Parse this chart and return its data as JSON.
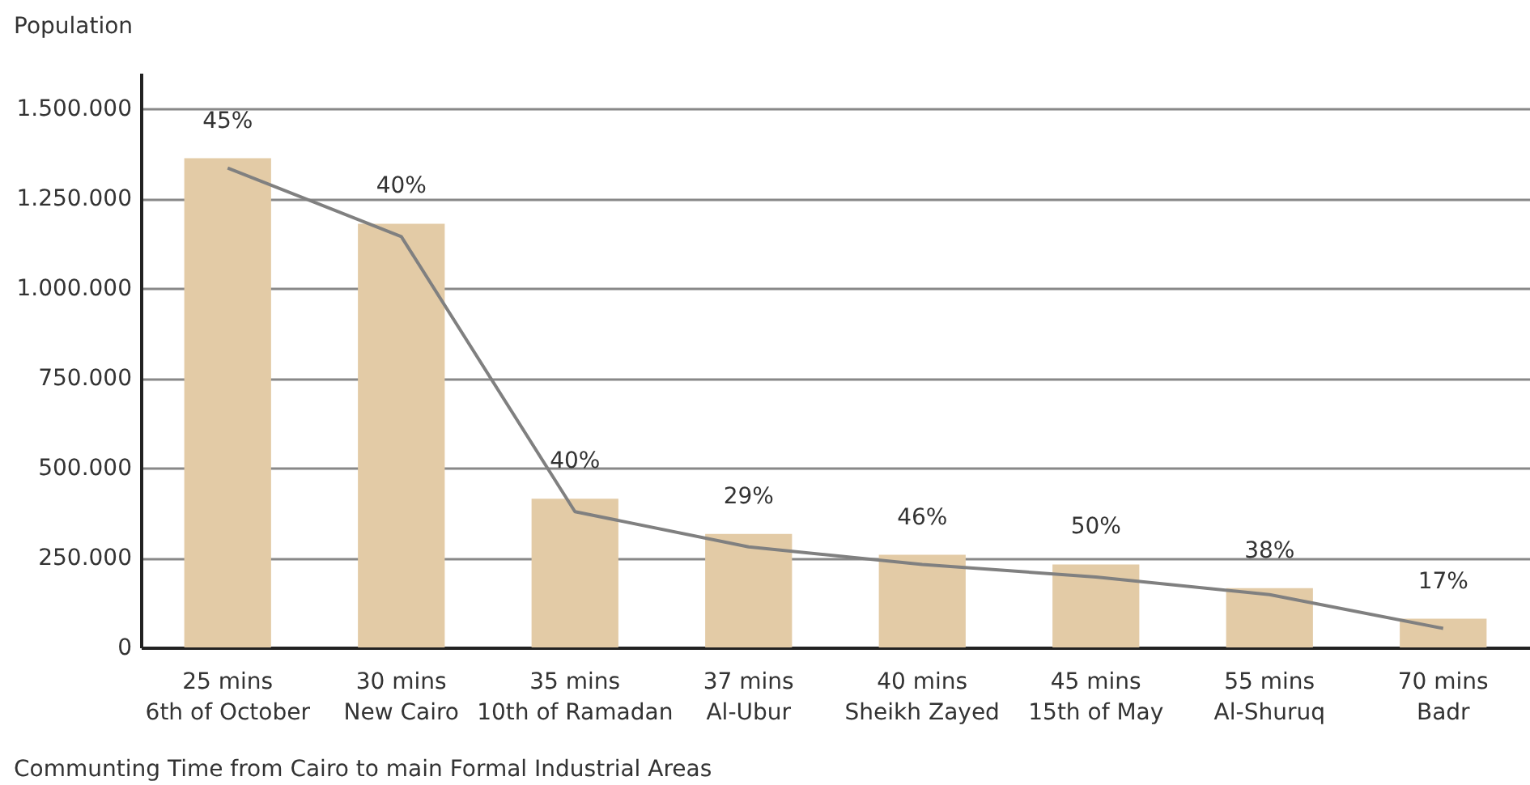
{
  "chart_data": {
    "type": "bar",
    "ylabel": "Population",
    "xlabel": "Communting Time from Cairo to main Formal Industrial Areas",
    "categories": [
      "25 mins\n6th of October",
      "30 mins\nNew Cairo",
      "35 mins\n10th of Ramadan",
      "37 mins\nAl-Ubur",
      "40 mins\nSheikh Zayed",
      "45 mins\n15th of May",
      "55 mins\nAl-Shuruq",
      "70 mins\nBadr"
    ],
    "series": [
      {
        "color": "#e3cba6",
        "values": [
          1362000,
          1180000,
          414000,
          316000,
          258000,
          231000,
          165000,
          80000
        ]
      },
      {
        "type": "line",
        "color": "#808080",
        "values": [
          1335000,
          1144000,
          378000,
          280000,
          231000,
          196000,
          147000,
          53000
        ]
      }
    ],
    "annotations": [
      {
        "text": "45%",
        "x": "25 mins\n6th of October",
        "y": 1362000
      },
      {
        "text": "40%",
        "x": "30 mins\nNew Cairo",
        "y": 1180000
      },
      {
        "text": "40%",
        "x": "35 mins\n10th of Ramadan",
        "y": 414000
      },
      {
        "text": "29%",
        "x": "37 mins\nAl-Ubur",
        "y": 316000
      },
      {
        "text": "46%",
        "x": "40 mins\nSheikh Zayed",
        "y": 258000
      },
      {
        "text": "50%",
        "x": "45 mins\n15th of May",
        "y": 231000
      },
      {
        "text": "38%",
        "x": "55 mins\nAl-Shuruq",
        "y": 165000
      },
      {
        "text": "17%",
        "x": "70 mins\nBadr",
        "y": 80000
      }
    ],
    "ylim": [
      0,
      1600000
    ],
    "yticks": [
      {
        "value": 0,
        "label": "0"
      },
      {
        "value": 250000,
        "label": "250.000"
      },
      {
        "value": 500000,
        "label": "500.000"
      },
      {
        "value": 750000,
        "label": "750.000"
      },
      {
        "value": 1000000,
        "label": "1.000.000"
      },
      {
        "value": 1250000,
        "label": "1.250.000"
      },
      {
        "value": 1500000,
        "label": "1.500.000"
      }
    ],
    "grid": "y",
    "marker": "none"
  }
}
